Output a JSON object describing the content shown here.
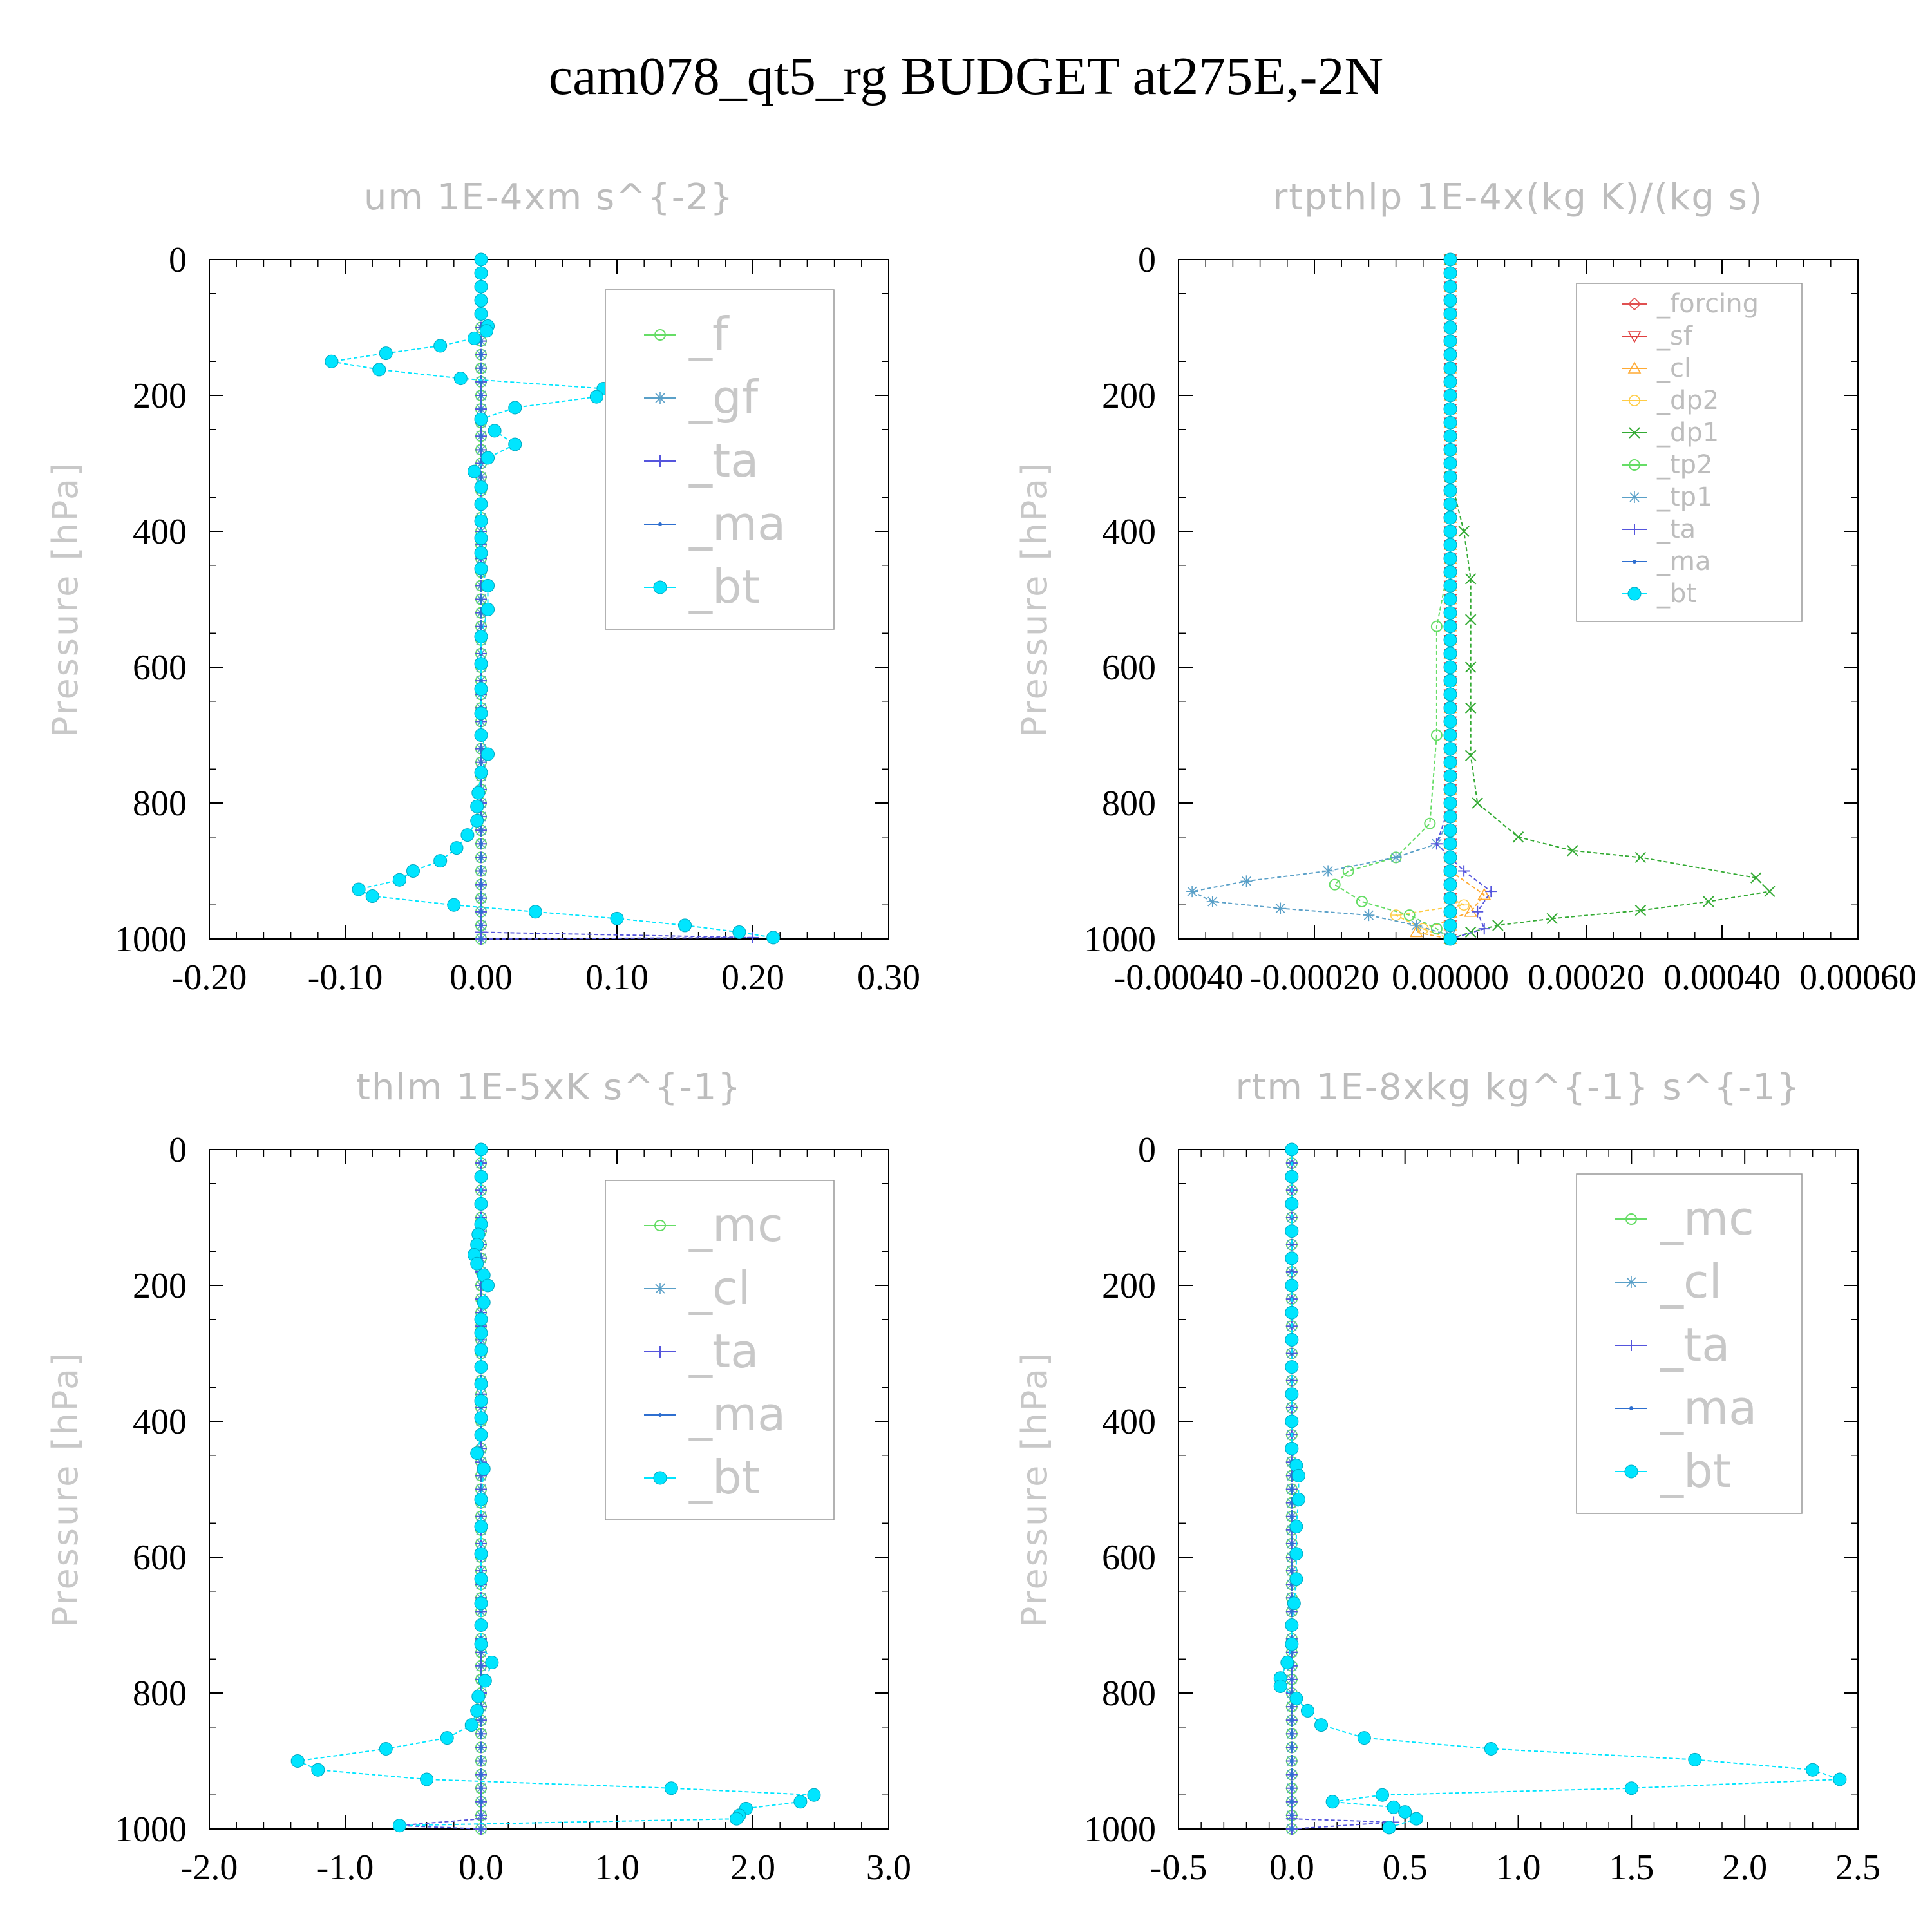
{
  "title": "cam078_qt5_rg  BUDGET at275E,-2N",
  "chart_data": [
    {
      "type": "line",
      "title": "um  1E-4xm s^{-2}",
      "ylabel": "Pressure [hPa]",
      "ylim": [
        1000,
        0
      ],
      "yticks": [
        "0",
        "200",
        "400",
        "600",
        "800",
        "1000"
      ],
      "xlim": [
        -0.2,
        0.3
      ],
      "xticks": [
        "-0.20",
        "-0.10",
        "0.00",
        "0.10",
        "0.20",
        "0.30"
      ],
      "legend": "top-right",
      "legend_size": "large",
      "series": [
        {
          "name": "_f",
          "color": "#66dd66",
          "marker": "circle-open",
          "profile": "zero"
        },
        {
          "name": "_gf",
          "color": "#5aa0c8",
          "marker": "asterisk",
          "profile": "zero"
        },
        {
          "name": "_ta",
          "color": "#5555dd",
          "marker": "plus",
          "profile": "zero",
          "points": [
            [
              0,
              0
            ],
            [
              0,
              960
            ],
            [
              0,
              990
            ],
            [
              0.2,
              998
            ],
            [
              0,
              1000
            ]
          ]
        },
        {
          "name": "_ma",
          "color": "#2e6fd0",
          "marker": "dot",
          "profile": "zero"
        },
        {
          "name": "_bt",
          "color": "#00e5ff",
          "marker": "filled-circle",
          "points": [
            [
              0,
              0
            ],
            [
              0,
              20
            ],
            [
              0,
              40
            ],
            [
              0,
              60
            ],
            [
              0,
              80
            ],
            [
              0.005,
              98
            ],
            [
              0.004,
              105
            ],
            [
              -0.005,
              116
            ],
            [
              -0.03,
              127
            ],
            [
              -0.07,
              138
            ],
            [
              -0.11,
              150
            ],
            [
              -0.075,
              162
            ],
            [
              -0.015,
              175
            ],
            [
              0.09,
              190
            ],
            [
              0.085,
              202
            ],
            [
              0.025,
              218
            ],
            [
              0,
              235
            ],
            [
              0.01,
              252
            ],
            [
              0.025,
              272
            ],
            [
              0.005,
              292
            ],
            [
              -0.005,
              312
            ],
            [
              0,
              335
            ],
            [
              0,
              360
            ],
            [
              0,
              385
            ],
            [
              0,
              410
            ],
            [
              0,
              432
            ],
            [
              0,
              455
            ],
            [
              0.005,
              480
            ],
            [
              0.005,
              515
            ],
            [
              0,
              555
            ],
            [
              0,
              595
            ],
            [
              0,
              632
            ],
            [
              0,
              668
            ],
            [
              0,
              700
            ],
            [
              0.005,
              728
            ],
            [
              0,
              755
            ],
            [
              -0.002,
              785
            ],
            [
              -0.003,
              805
            ],
            [
              -0.003,
              826
            ],
            [
              -0.01,
              847
            ],
            [
              -0.018,
              866
            ],
            [
              -0.03,
              885
            ],
            [
              -0.05,
              900
            ],
            [
              -0.06,
              913
            ],
            [
              -0.09,
              927
            ],
            [
              -0.08,
              937
            ],
            [
              -0.02,
              950
            ],
            [
              0.04,
              960
            ],
            [
              0.1,
              970
            ],
            [
              0.15,
              980
            ],
            [
              0.19,
              990
            ],
            [
              0.215,
              998
            ]
          ]
        }
      ]
    },
    {
      "type": "line",
      "title": "rtpthlp  1E-4x(kg K)/(kg s)",
      "ylabel": "Pressure [hPa]",
      "ylim": [
        1000,
        0
      ],
      "yticks": [
        "0",
        "200",
        "400",
        "600",
        "800",
        "1000"
      ],
      "xlim": [
        -0.0004,
        0.0006
      ],
      "xticks": [
        "-0.00040",
        "-0.00020",
        "0.00000",
        "0.00020",
        "0.00040",
        "0.00060"
      ],
      "legend": "top-right",
      "legend_size": "small",
      "series": [
        {
          "name": "_forcing",
          "color": "#e05050",
          "marker": "diamond",
          "profile": "zero"
        },
        {
          "name": "_sf",
          "color": "#e04040",
          "marker": "triangle-down",
          "profile": "zero"
        },
        {
          "name": "_cl",
          "color": "#ffaa33",
          "marker": "triangle-up",
          "profile": "zero",
          "points": [
            [
              0,
              0
            ],
            [
              0,
              900
            ],
            [
              5e-05,
              935
            ],
            [
              3e-05,
              960
            ],
            [
              -5e-05,
              990
            ],
            [
              0,
              1000
            ]
          ]
        },
        {
          "name": "_dp2",
          "color": "#ffcc44",
          "marker": "circle-cross",
          "profile": "zero",
          "points": [
            [
              0,
              0
            ],
            [
              0,
              940
            ],
            [
              2e-05,
              950
            ],
            [
              -8e-05,
              965
            ],
            [
              -4e-05,
              985
            ],
            [
              0,
              1000
            ]
          ]
        },
        {
          "name": "_dp1",
          "color": "#33aa33",
          "marker": "x",
          "points": [
            [
              0,
              0
            ],
            [
              0,
              320
            ],
            [
              2e-05,
              400
            ],
            [
              3e-05,
              470
            ],
            [
              3e-05,
              530
            ],
            [
              3e-05,
              600
            ],
            [
              3e-05,
              660
            ],
            [
              3e-05,
              730
            ],
            [
              4e-05,
              800
            ],
            [
              0.0001,
              850
            ],
            [
              0.00018,
              870
            ],
            [
              0.00028,
              880
            ],
            [
              0.00045,
              910
            ],
            [
              0.00047,
              930
            ],
            [
              0.00038,
              945
            ],
            [
              0.00028,
              958
            ],
            [
              0.00015,
              970
            ],
            [
              7e-05,
              980
            ],
            [
              3e-05,
              990
            ],
            [
              0,
              1000
            ]
          ]
        },
        {
          "name": "_tp2",
          "color": "#66dd66",
          "marker": "circle-open",
          "points": [
            [
              0,
              0
            ],
            [
              0,
              440
            ],
            [
              -2e-05,
              540
            ],
            [
              -2e-05,
              700
            ],
            [
              -3e-05,
              830
            ],
            [
              -8e-05,
              880
            ],
            [
              -0.00015,
              900
            ],
            [
              -0.00017,
              920
            ],
            [
              -0.00013,
              945
            ],
            [
              -6e-05,
              965
            ],
            [
              -2e-05,
              985
            ],
            [
              0,
              1000
            ]
          ]
        },
        {
          "name": "_tp1",
          "color": "#5aa0c8",
          "marker": "asterisk",
          "points": [
            [
              0,
              0
            ],
            [
              0,
              820
            ],
            [
              -2e-05,
              860
            ],
            [
              -8e-05,
              880
            ],
            [
              -0.00018,
              900
            ],
            [
              -0.0003,
              915
            ],
            [
              -0.00038,
              930
            ],
            [
              -0.00035,
              945
            ],
            [
              -0.00025,
              955
            ],
            [
              -0.00012,
              965
            ],
            [
              -5e-05,
              980
            ],
            [
              0,
              995
            ]
          ]
        },
        {
          "name": "_ta",
          "color": "#5555dd",
          "marker": "plus",
          "points": [
            [
              0,
              0
            ],
            [
              0,
              800
            ],
            [
              -2e-05,
              860
            ],
            [
              2e-05,
              900
            ],
            [
              6e-05,
              930
            ],
            [
              4e-05,
              960
            ],
            [
              5e-05,
              985
            ],
            [
              0,
              1000
            ]
          ]
        },
        {
          "name": "_ma",
          "color": "#2e6fd0",
          "marker": "dot",
          "profile": "zero"
        },
        {
          "name": "_bt",
          "color": "#00e5ff",
          "marker": "filled-circle",
          "profile": "zero"
        }
      ]
    },
    {
      "type": "line",
      "title": "thlm  1E-5xK s^{-1}",
      "ylabel": "Pressure [hPa]",
      "ylim": [
        1000,
        0
      ],
      "yticks": [
        "0",
        "200",
        "400",
        "600",
        "800",
        "1000"
      ],
      "xlim": [
        -2.0,
        3.0
      ],
      "xticks": [
        "-2.0",
        "-1.0",
        "0.0",
        "1.0",
        "2.0",
        "3.0"
      ],
      "legend": "top-right",
      "legend_size": "large",
      "series": [
        {
          "name": "_mc",
          "color": "#66dd66",
          "marker": "circle-open",
          "profile": "zero"
        },
        {
          "name": "_cl",
          "color": "#5aa0c8",
          "marker": "asterisk",
          "profile": "zero"
        },
        {
          "name": "_ta",
          "color": "#5555dd",
          "marker": "plus",
          "profile": "zero",
          "points": [
            [
              0,
              0
            ],
            [
              0,
              985
            ],
            [
              -0.6,
              995
            ],
            [
              0,
              1000
            ]
          ]
        },
        {
          "name": "_ma",
          "color": "#2e6fd0",
          "marker": "dot",
          "profile": "zero"
        },
        {
          "name": "_bt",
          "color": "#00e5ff",
          "marker": "filled-circle",
          "points": [
            [
              0,
              0
            ],
            [
              0,
              40
            ],
            [
              0,
              80
            ],
            [
              0,
              110
            ],
            [
              -0.02,
              125
            ],
            [
              -0.03,
              140
            ],
            [
              -0.05,
              155
            ],
            [
              -0.03,
              168
            ],
            [
              0.02,
              185
            ],
            [
              0.05,
              200
            ],
            [
              0.02,
              225
            ],
            [
              0,
              250
            ],
            [
              0,
              270
            ],
            [
              0,
              295
            ],
            [
              0,
              320
            ],
            [
              0,
              345
            ],
            [
              0,
              370
            ],
            [
              0,
              395
            ],
            [
              0,
              420
            ],
            [
              -0.03,
              447
            ],
            [
              0.02,
              470
            ],
            [
              0,
              515
            ],
            [
              0,
              555
            ],
            [
              0,
              595
            ],
            [
              0,
              632
            ],
            [
              0,
              668
            ],
            [
              0,
              700
            ],
            [
              0,
              728
            ],
            [
              0.08,
              755
            ],
            [
              0.03,
              782
            ],
            [
              -0.02,
              805
            ],
            [
              -0.03,
              826
            ],
            [
              -0.07,
              847
            ],
            [
              -0.25,
              866
            ],
            [
              -0.7,
              882
            ],
            [
              -1.35,
              900
            ],
            [
              -1.2,
              913
            ],
            [
              -0.4,
              927
            ],
            [
              1.4,
              940
            ],
            [
              2.45,
              950
            ],
            [
              2.35,
              960
            ],
            [
              1.95,
              970
            ],
            [
              1.9,
              980
            ],
            [
              1.88,
              985
            ],
            [
              -0.6,
              995
            ]
          ]
        }
      ]
    },
    {
      "type": "line",
      "title": "rtm  1E-8xkg kg^{-1} s^{-1}",
      "ylabel": "Pressure [hPa]",
      "ylim": [
        1000,
        0
      ],
      "yticks": [
        "0",
        "200",
        "400",
        "600",
        "800",
        "1000"
      ],
      "xlim": [
        -0.5,
        2.5
      ],
      "xticks": [
        "-0.5",
        "0.0",
        "0.5",
        "1.0",
        "1.5",
        "2.0",
        "2.5"
      ],
      "legend": "top-right",
      "legend_size": "large",
      "series": [
        {
          "name": "_mc",
          "color": "#66dd66",
          "marker": "circle-open",
          "profile": "zero"
        },
        {
          "name": "_cl",
          "color": "#5aa0c8",
          "marker": "asterisk",
          "profile": "zero"
        },
        {
          "name": "_ta",
          "color": "#5555dd",
          "marker": "plus",
          "profile": "zero",
          "points": [
            [
              0,
              0
            ],
            [
              0,
              985
            ],
            [
              0.45,
              990
            ],
            [
              0,
              1000
            ]
          ]
        },
        {
          "name": "_ma",
          "color": "#2e6fd0",
          "marker": "dot",
          "profile": "zero"
        },
        {
          "name": "_bt",
          "color": "#00e5ff",
          "marker": "filled-circle",
          "points": [
            [
              0,
              0
            ],
            [
              0,
              40
            ],
            [
              0,
              80
            ],
            [
              0,
              120
            ],
            [
              0,
              160
            ],
            [
              0,
              200
            ],
            [
              0,
              240
            ],
            [
              0,
              280
            ],
            [
              0,
              320
            ],
            [
              0,
              360
            ],
            [
              0,
              400
            ],
            [
              0,
              440
            ],
            [
              0.02,
              465
            ],
            [
              0.03,
              480
            ],
            [
              0.03,
              515
            ],
            [
              0.02,
              555
            ],
            [
              0.02,
              595
            ],
            [
              0.02,
              632
            ],
            [
              0.01,
              668
            ],
            [
              0,
              700
            ],
            [
              0,
              728
            ],
            [
              -0.02,
              755
            ],
            [
              -0.05,
              778
            ],
            [
              -0.05,
              790
            ],
            [
              0.02,
              808
            ],
            [
              0.07,
              826
            ],
            [
              0.13,
              847
            ],
            [
              0.32,
              866
            ],
            [
              0.88,
              882
            ],
            [
              1.78,
              898
            ],
            [
              2.3,
              913
            ],
            [
              2.42,
              927
            ],
            [
              1.5,
              940
            ],
            [
              0.4,
              950
            ],
            [
              0.18,
              960
            ],
            [
              0.45,
              968
            ],
            [
              0.5,
              975
            ],
            [
              0.55,
              985
            ],
            [
              0.43,
              998
            ]
          ]
        }
      ]
    }
  ]
}
